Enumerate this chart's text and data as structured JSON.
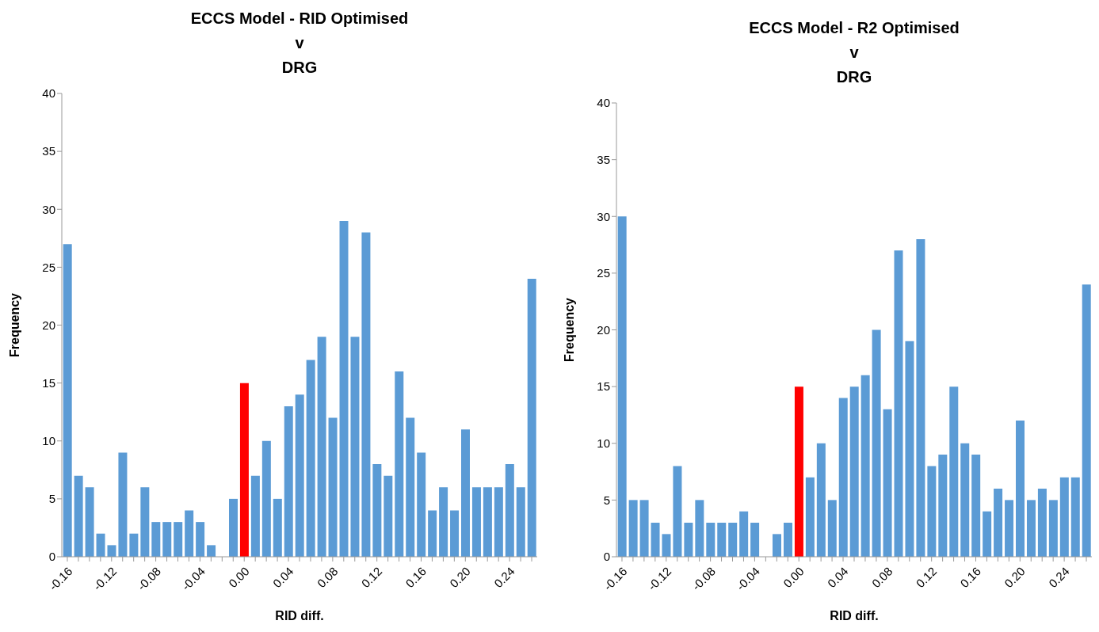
{
  "chart_data": [
    {
      "type": "bar",
      "title": "ECCS Model - RID Optimised\nv\nDRG",
      "xlabel": "RID diff.",
      "ylabel": "Frequency",
      "categories": [
        "-0.16",
        null,
        null,
        null,
        "-0.12",
        null,
        null,
        null,
        "-0.08",
        null,
        null,
        null,
        "-0.04",
        null,
        null,
        null,
        "0.00",
        null,
        null,
        null,
        "0.04",
        null,
        null,
        null,
        "0.08",
        null,
        null,
        null,
        "0.12",
        null,
        null,
        null,
        "0.16",
        null,
        null,
        null,
        "0.20",
        null,
        null,
        null,
        "0.24",
        null,
        null
      ],
      "values": [
        27,
        7,
        6,
        2,
        1,
        9,
        2,
        6,
        3,
        3,
        3,
        4,
        3,
        1,
        0,
        5,
        15,
        7,
        10,
        5,
        13,
        14,
        17,
        19,
        12,
        29,
        19,
        28,
        8,
        7,
        16,
        12,
        9,
        4,
        6,
        4,
        11,
        6,
        6,
        6,
        8,
        6,
        24
      ],
      "colors": [
        "#5b9bd5",
        "#5b9bd5",
        "#5b9bd5",
        "#5b9bd5",
        "#5b9bd5",
        "#5b9bd5",
        "#5b9bd5",
        "#5b9bd5",
        "#5b9bd5",
        "#5b9bd5",
        "#5b9bd5",
        "#5b9bd5",
        "#5b9bd5",
        "#5b9bd5",
        "#5b9bd5",
        "#5b9bd5",
        "#ff0000",
        "#5b9bd5",
        "#5b9bd5",
        "#5b9bd5",
        "#5b9bd5",
        "#5b9bd5",
        "#5b9bd5",
        "#5b9bd5",
        "#5b9bd5",
        "#5b9bd5",
        "#5b9bd5",
        "#5b9bd5",
        "#5b9bd5",
        "#5b9bd5",
        "#5b9bd5",
        "#5b9bd5",
        "#5b9bd5",
        "#5b9bd5",
        "#5b9bd5",
        "#5b9bd5",
        "#5b9bd5",
        "#5b9bd5",
        "#5b9bd5",
        "#5b9bd5",
        "#5b9bd5",
        "#5b9bd5",
        "#5b9bd5"
      ],
      "ylim": [
        0,
        40
      ],
      "yticks": [
        0,
        5,
        10,
        15,
        20,
        25,
        30,
        35,
        40
      ],
      "grid": false,
      "legend": false
    },
    {
      "type": "bar",
      "title": "ECCS Model - R2 Optimised\nv\nDRG",
      "xlabel": "RID diff.",
      "ylabel": "Frequency",
      "categories": [
        "-0.16",
        null,
        null,
        null,
        "-0.12",
        null,
        null,
        null,
        "-0.08",
        null,
        null,
        null,
        "-0.04",
        null,
        null,
        null,
        "0.00",
        null,
        null,
        null,
        "0.04",
        null,
        null,
        null,
        "0.08",
        null,
        null,
        null,
        "0.12",
        null,
        null,
        null,
        "0.16",
        null,
        null,
        null,
        "0.20",
        null,
        null,
        null,
        "0.24",
        null,
        null
      ],
      "values": [
        30,
        5,
        5,
        3,
        2,
        8,
        3,
        5,
        3,
        3,
        3,
        4,
        3,
        0,
        2,
        3,
        15,
        7,
        10,
        5,
        14,
        15,
        16,
        20,
        13,
        27,
        19,
        28,
        8,
        9,
        15,
        10,
        9,
        4,
        6,
        5,
        12,
        5,
        6,
        5,
        7,
        7,
        24
      ],
      "colors": [
        "#5b9bd5",
        "#5b9bd5",
        "#5b9bd5",
        "#5b9bd5",
        "#5b9bd5",
        "#5b9bd5",
        "#5b9bd5",
        "#5b9bd5",
        "#5b9bd5",
        "#5b9bd5",
        "#5b9bd5",
        "#5b9bd5",
        "#5b9bd5",
        "#5b9bd5",
        "#5b9bd5",
        "#5b9bd5",
        "#ff0000",
        "#5b9bd5",
        "#5b9bd5",
        "#5b9bd5",
        "#5b9bd5",
        "#5b9bd5",
        "#5b9bd5",
        "#5b9bd5",
        "#5b9bd5",
        "#5b9bd5",
        "#5b9bd5",
        "#5b9bd5",
        "#5b9bd5",
        "#5b9bd5",
        "#5b9bd5",
        "#5b9bd5",
        "#5b9bd5",
        "#5b9bd5",
        "#5b9bd5",
        "#5b9bd5",
        "#5b9bd5",
        "#5b9bd5",
        "#5b9bd5",
        "#5b9bd5",
        "#5b9bd5",
        "#5b9bd5",
        "#5b9bd5"
      ],
      "ylim": [
        0,
        40
      ],
      "yticks": [
        0,
        5,
        10,
        15,
        20,
        25,
        30,
        35,
        40
      ],
      "grid": false,
      "legend": false
    }
  ]
}
